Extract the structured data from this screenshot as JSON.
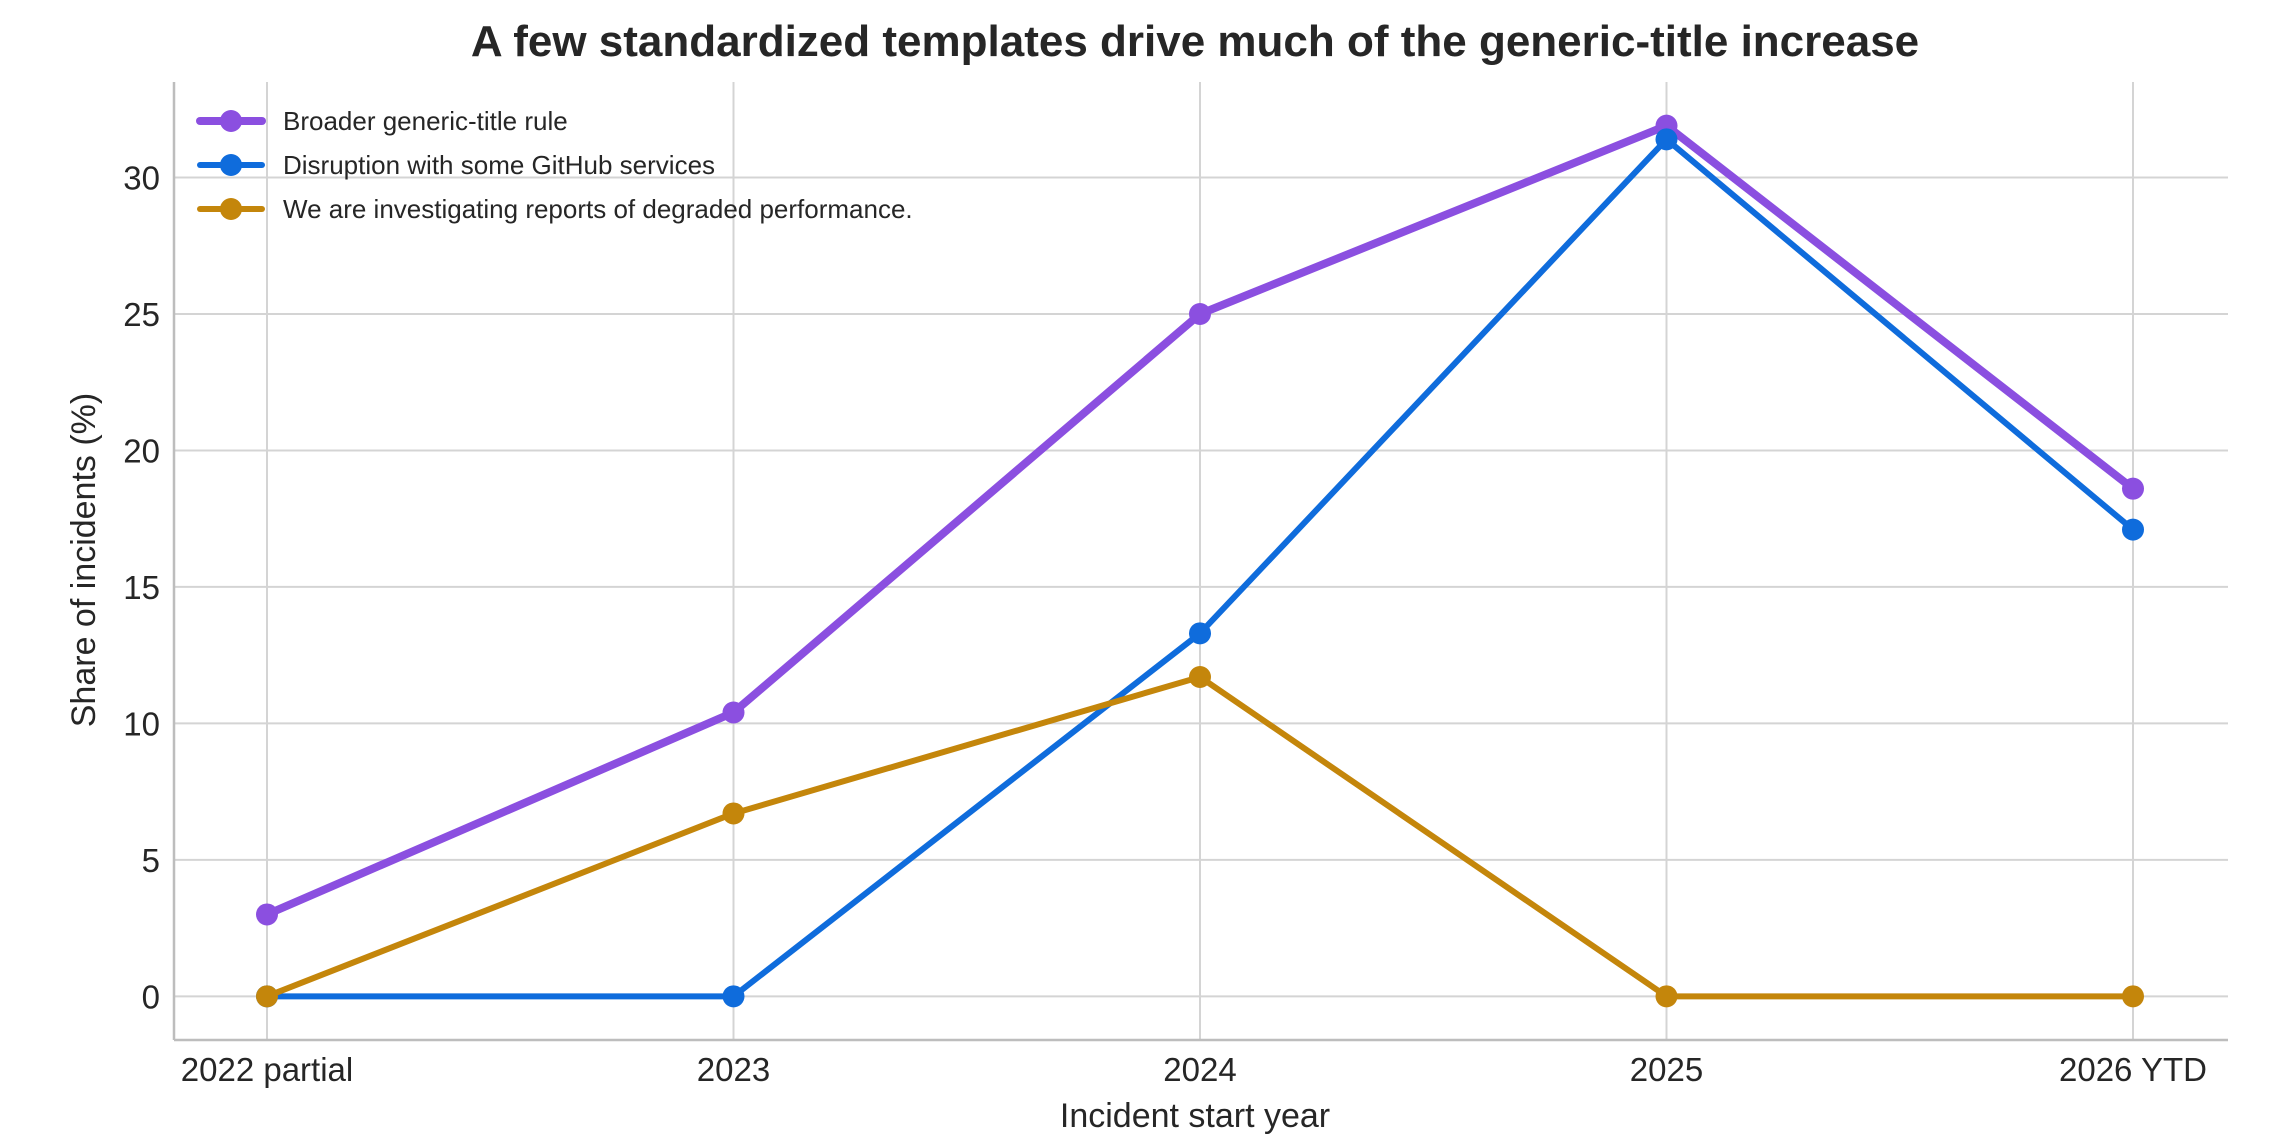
{
  "chart_data": {
    "type": "line",
    "title": "A few standardized templates drive much of the generic-title increase",
    "xlabel": "Incident start year",
    "ylabel": "Share of incidents (%)",
    "categories": [
      "2022 partial",
      "2023",
      "2024",
      "2025",
      "2026 YTD"
    ],
    "ylim": [
      -1.6,
      33.5
    ],
    "yticks": [
      0,
      5,
      10,
      15,
      20,
      25,
      30
    ],
    "grid": true,
    "legend_position": "top-left",
    "series": [
      {
        "name": "Broader generic-title rule",
        "color": "#8b4fe0",
        "values": [
          3.0,
          10.4,
          25.0,
          31.9,
          18.6
        ]
      },
      {
        "name": "Disruption with some GitHub services",
        "color": "#0f6cdc",
        "values": [
          0.0,
          0.0,
          13.3,
          31.4,
          17.1
        ]
      },
      {
        "name": "We are investigating reports of degraded performance.",
        "color": "#c4860b",
        "values": [
          0.0,
          6.7,
          11.7,
          0.0,
          0.0
        ]
      }
    ]
  }
}
